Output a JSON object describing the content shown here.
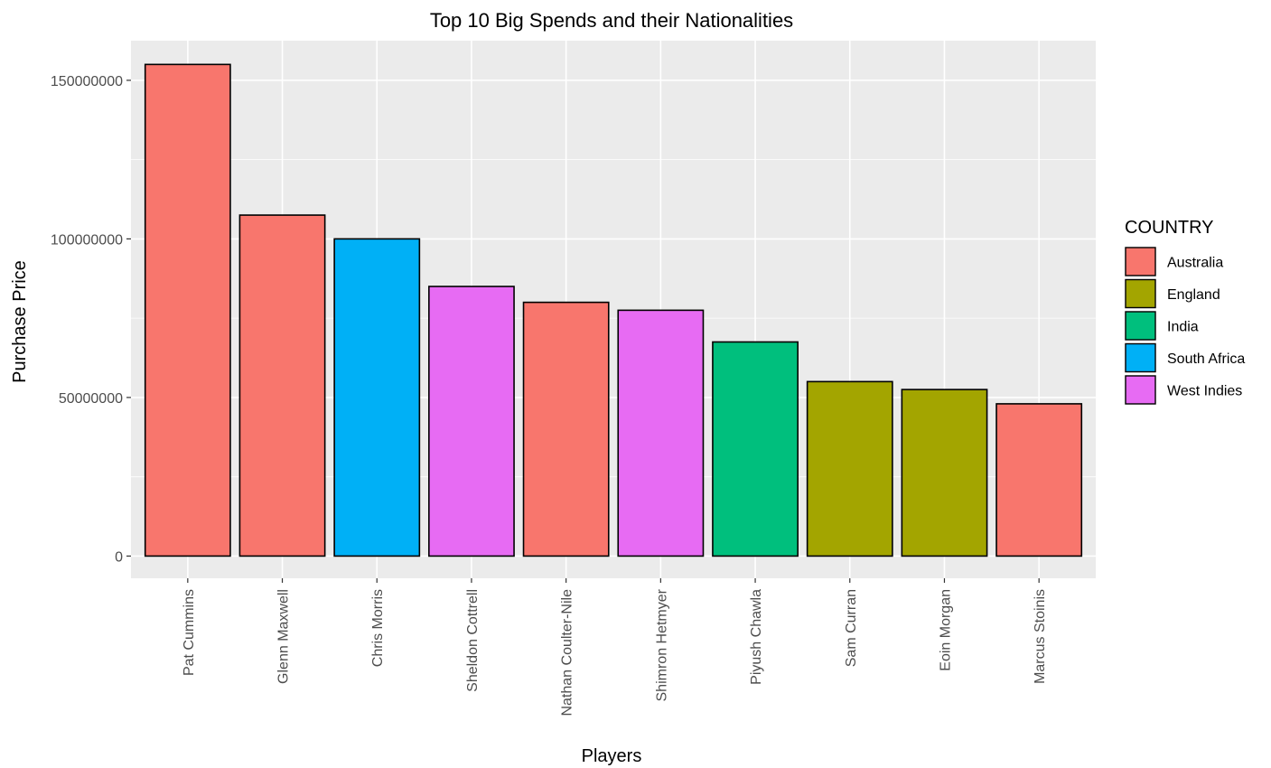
{
  "chart_data": {
    "type": "bar",
    "title": "Top 10 Big Spends and their Nationalities",
    "xlabel": "Players",
    "ylabel": "Purchase Price",
    "categories": [
      "Pat Cummins",
      "Glenn Maxwell",
      "Chris Morris",
      "Sheldon Cottrell",
      "Nathan Coulter-Nile",
      "Shimron Hetmyer",
      "Piyush Chawla",
      "Sam Curran",
      "Eoin Morgan",
      "Marcus Stoinis"
    ],
    "values": [
      155000000,
      107500000,
      100000000,
      85000000,
      80000000,
      77500000,
      67500000,
      55000000,
      52500000,
      48000000
    ],
    "countries": [
      "Australia",
      "Australia",
      "South Africa",
      "West Indies",
      "Australia",
      "West Indies",
      "India",
      "England",
      "England",
      "Australia"
    ],
    "ylim": [
      -7000000,
      162500000
    ],
    "yticks": [
      0,
      50000000,
      100000000,
      150000000
    ],
    "ytick_labels": [
      "0",
      "50000000",
      "100000000",
      "150000000"
    ],
    "grid": true,
    "legend": {
      "title": "COUNTRY",
      "position": "right",
      "entries": [
        {
          "label": "Australia",
          "color": "#F8766D"
        },
        {
          "label": "England",
          "color": "#A3A500"
        },
        {
          "label": "India",
          "color": "#00BF7D"
        },
        {
          "label": "South Africa",
          "color": "#00B0F6"
        },
        {
          "label": "West Indies",
          "color": "#E76BF3"
        }
      ]
    },
    "colors": {
      "panel_background": "#EBEBEB",
      "grid_major": "#FFFFFF",
      "bar_outline": "#000000"
    }
  }
}
